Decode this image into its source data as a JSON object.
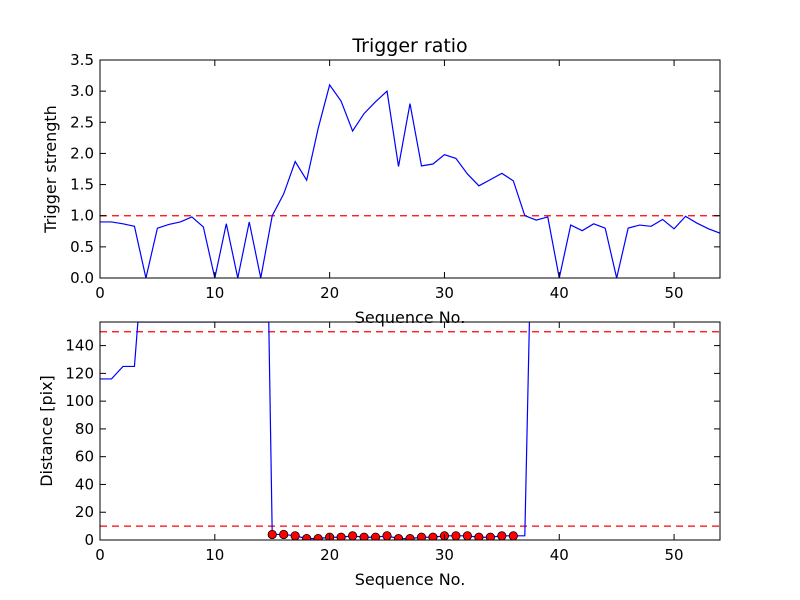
{
  "chart_data": [
    {
      "type": "line",
      "title": "Trigger ratio",
      "xlabel": "Sequence No.",
      "ylabel": "Trigger strength",
      "xlim": [
        0,
        54
      ],
      "ylim": [
        0,
        3.5
      ],
      "xticks": [
        0,
        10,
        20,
        30,
        40,
        50
      ],
      "xtick_labels": [
        "0",
        "10",
        "20",
        "30",
        "40",
        "50"
      ],
      "yticks": [
        0.0,
        0.5,
        1.0,
        1.5,
        2.0,
        2.5,
        3.0,
        3.5
      ],
      "ytick_labels": [
        "0.0",
        "0.5",
        "1.0",
        "1.5",
        "2.0",
        "2.5",
        "3.0",
        "3.5"
      ],
      "grid": false,
      "series": [
        {
          "color": "#0000ff",
          "style": "solid",
          "x": [
            0,
            1,
            2,
            3,
            4,
            5,
            6,
            7,
            8,
            9,
            10,
            11,
            12,
            13,
            14,
            15,
            16,
            17,
            18,
            19,
            20,
            21,
            22,
            23,
            24,
            25,
            26,
            27,
            28,
            29,
            30,
            31,
            32,
            33,
            34,
            35,
            36,
            37,
            38,
            39,
            40,
            41,
            42,
            43,
            44,
            45,
            46,
            47,
            48,
            49,
            50,
            51,
            52,
            53,
            54
          ],
          "values": [
            0.9,
            0.9,
            0.87,
            0.83,
            0.0,
            0.8,
            0.86,
            0.9,
            0.98,
            0.82,
            0.0,
            0.87,
            0.0,
            0.9,
            0.0,
            1.0,
            1.35,
            1.87,
            1.57,
            2.4,
            3.1,
            2.84,
            2.36,
            2.64,
            2.83,
            3.0,
            1.79,
            2.8,
            1.8,
            1.83,
            1.98,
            1.92,
            1.67,
            1.48,
            1.58,
            1.68,
            1.56,
            1.0,
            0.93,
            0.98,
            0.0,
            0.85,
            0.76,
            0.87,
            0.8,
            0.0,
            0.8,
            0.85,
            0.83,
            0.94,
            0.79,
            0.99,
            0.88,
            0.79,
            0.72
          ]
        }
      ],
      "reference_lines": [
        {
          "y": 1.0,
          "color": "#ff0000",
          "style": "dashed"
        }
      ]
    },
    {
      "type": "line",
      "title": "",
      "xlabel": "Sequence No.",
      "ylabel": "Distance [pix]",
      "xlim": [
        0,
        54
      ],
      "ylim": [
        0,
        157
      ],
      "xticks": [
        0,
        10,
        20,
        30,
        40,
        50
      ],
      "xtick_labels": [
        "0",
        "10",
        "20",
        "30",
        "40",
        "50"
      ],
      "yticks": [
        0,
        20,
        40,
        60,
        80,
        100,
        120,
        140
      ],
      "ytick_labels": [
        "0",
        "20",
        "40",
        "60",
        "80",
        "100",
        "120",
        "140"
      ],
      "grid": false,
      "series": [
        {
          "color": "#0000ff",
          "style": "solid",
          "x": [
            0,
            1,
            2,
            3,
            3.3,
            14.7,
            15,
            16,
            17,
            18,
            19,
            20,
            21,
            22,
            23,
            24,
            25,
            26,
            27,
            28,
            29,
            30,
            31,
            32,
            33,
            34,
            35,
            36,
            37,
            37.4
          ],
          "values": [
            116,
            116,
            125,
            125,
            157,
            157,
            4,
            4,
            3,
            1,
            1,
            2,
            2,
            3,
            2,
            2,
            3,
            1,
            1,
            2,
            2,
            3,
            3,
            3,
            2,
            2,
            3,
            3,
            3,
            157
          ]
        },
        {
          "color": "#ff0000",
          "style": "markers",
          "x": [
            15,
            16,
            17,
            18,
            19,
            20,
            21,
            22,
            23,
            24,
            25,
            26,
            27,
            28,
            29,
            30,
            31,
            32,
            33,
            34,
            35,
            36
          ],
          "values": [
            4,
            4,
            3,
            1,
            1,
            2,
            2,
            3,
            2,
            2,
            3,
            1,
            1,
            2,
            2,
            3,
            3,
            3,
            2,
            2,
            3,
            3
          ]
        }
      ],
      "reference_lines": [
        {
          "y": 150,
          "color": "#ff0000",
          "style": "dashed"
        },
        {
          "y": 10,
          "color": "#ff0000",
          "style": "dashed"
        }
      ]
    }
  ]
}
